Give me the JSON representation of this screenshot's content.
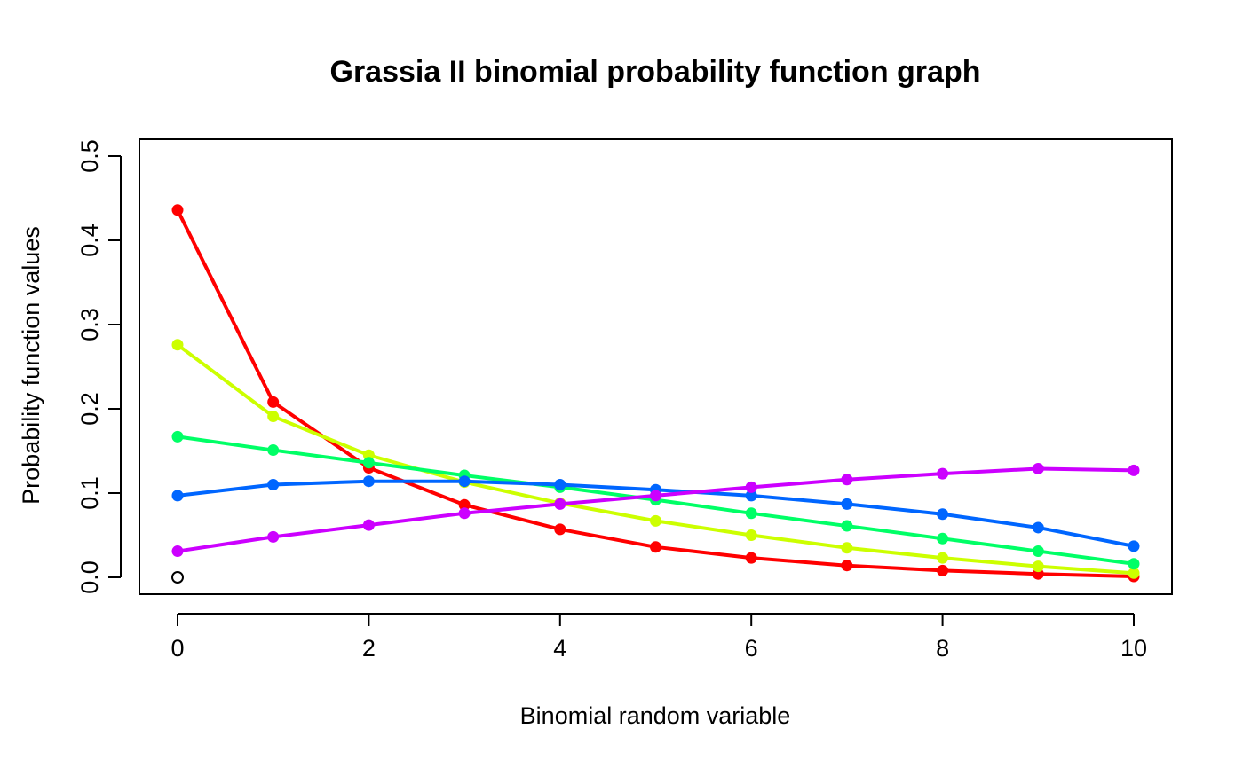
{
  "chart_data": {
    "type": "line",
    "title": "Grassia II binomial probability function graph",
    "xlabel": "Binomial random variable",
    "ylabel": "Probability function values",
    "xlim": [
      0,
      10
    ],
    "ylim": [
      0,
      0.5
    ],
    "x_ticks": [
      0,
      2,
      4,
      6,
      8,
      10
    ],
    "x_tick_labels": [
      "0",
      "2",
      "4",
      "6",
      "8",
      "10"
    ],
    "y_ticks": [
      0,
      0.1,
      0.2,
      0.3,
      0.4,
      0.5
    ],
    "y_tick_labels": [
      "0.0",
      "0.1",
      "0.2",
      "0.3",
      "0.4",
      "0.5"
    ],
    "grid": false,
    "legend": "none",
    "x": [
      0,
      1,
      2,
      3,
      4,
      5,
      6,
      7,
      8,
      9,
      10
    ],
    "open_point": {
      "x": 0,
      "y": 0,
      "color": "#000000"
    },
    "series": [
      {
        "color": "#ff0000",
        "values": [
          0.436,
          0.208,
          0.13,
          0.086,
          0.057,
          0.036,
          0.023,
          0.014,
          0.008,
          0.004,
          0.001
        ]
      },
      {
        "color": "#ccff00",
        "values": [
          0.276,
          0.191,
          0.145,
          0.113,
          0.088,
          0.067,
          0.05,
          0.035,
          0.023,
          0.013,
          0.005
        ]
      },
      {
        "color": "#00ff66",
        "values": [
          0.167,
          0.151,
          0.136,
          0.121,
          0.107,
          0.092,
          0.076,
          0.061,
          0.046,
          0.031,
          0.016
        ]
      },
      {
        "color": "#0066ff",
        "values": [
          0.097,
          0.11,
          0.114,
          0.114,
          0.11,
          0.104,
          0.097,
          0.087,
          0.075,
          0.059,
          0.037
        ]
      },
      {
        "color": "#cc00ff",
        "values": [
          0.031,
          0.048,
          0.062,
          0.076,
          0.087,
          0.097,
          0.107,
          0.116,
          0.123,
          0.129,
          0.127
        ]
      }
    ]
  }
}
